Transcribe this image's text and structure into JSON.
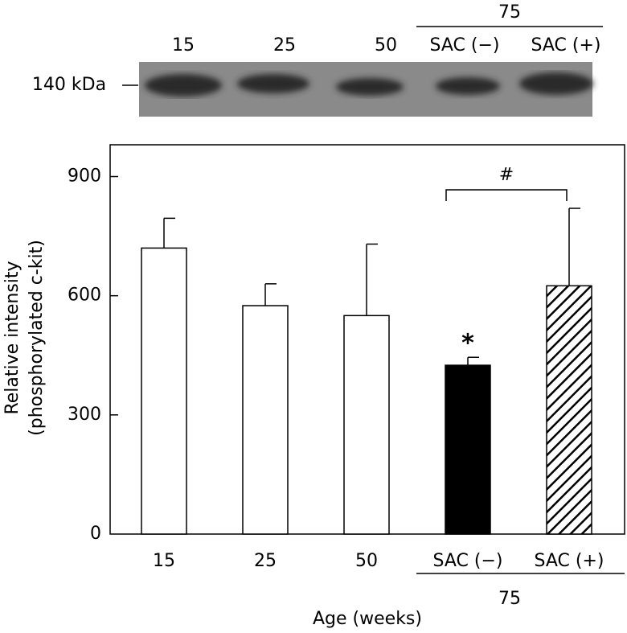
{
  "chart_data": {
    "type": "bar",
    "blot_label": "140 kDa",
    "categories": [
      "15",
      "25",
      "50",
      "SAC (−)",
      "SAC (+)"
    ],
    "group_label": "75",
    "values": [
      720,
      575,
      550,
      425,
      625
    ],
    "errors": [
      75,
      55,
      180,
      20,
      195
    ],
    "fills": [
      "white",
      "white",
      "white",
      "black",
      "hatch"
    ],
    "annotations": [
      "*",
      "#"
    ],
    "y_label": [
      "Relative intensity",
      "(phosphorylated c-kit)"
    ],
    "x_label": "Age (weeks)",
    "ylim": [
      0,
      980
    ],
    "yticks": [
      0,
      300,
      600,
      900
    ]
  }
}
